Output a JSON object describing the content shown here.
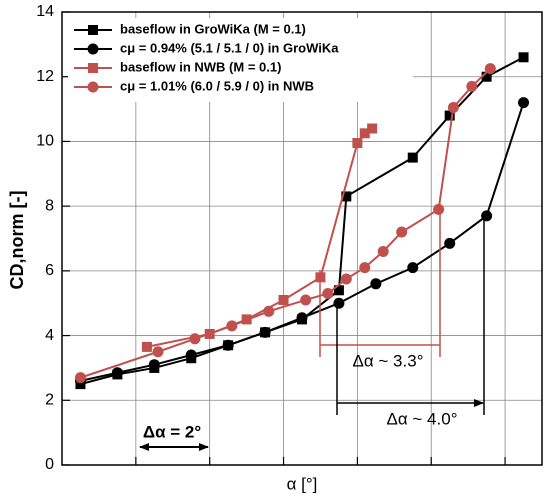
{
  "chart_data": {
    "type": "line",
    "x_label": "α [°]",
    "y_label": "CD,norm [-]",
    "xlim": [
      0,
      13
    ],
    "xticks": [
      2,
      4,
      6,
      8,
      10,
      12
    ],
    "ylim": [
      0,
      14
    ],
    "yticks": [
      0,
      2,
      4,
      6,
      8,
      10,
      12,
      14
    ],
    "grid": true,
    "legend": "upper left",
    "series": [
      {
        "name": "baseflow in GroWiKa (M = 0.1)",
        "color": "#000000",
        "marker": "square",
        "x": [
          0.5,
          1.5,
          2.5,
          3.5,
          4.5,
          5.5,
          6.5,
          7.5,
          7.7,
          9.5,
          10.5,
          11.5,
          12.5
        ],
        "values": [
          2.5,
          2.8,
          3.0,
          3.3,
          3.7,
          4.1,
          4.5,
          5.4,
          8.3,
          9.5,
          10.8,
          12.0,
          12.6
        ]
      },
      {
        "name": "cμ = 0.94% (5.1 / 5.1 / 0) in GroWiKa",
        "color": "#000000",
        "marker": "circle",
        "x": [
          0.5,
          1.5,
          2.5,
          3.5,
          4.5,
          5.5,
          6.5,
          7.5,
          8.5,
          9.5,
          10.5,
          11.5,
          12.5
        ],
        "values": [
          2.6,
          2.85,
          3.1,
          3.4,
          3.7,
          4.1,
          4.55,
          5.0,
          5.6,
          6.1,
          6.85,
          7.7,
          11.2
        ]
      },
      {
        "name": "baseflow in NWB (M = 0.1)",
        "color": "#c0504d",
        "marker": "square",
        "x": [
          2.3,
          4.0,
          5.0,
          6.0,
          7.0,
          8.0,
          8.2,
          8.4
        ],
        "values": [
          3.65,
          4.05,
          4.5,
          5.1,
          5.8,
          9.95,
          10.25,
          10.4
        ]
      },
      {
        "name": "cμ = 1.01% (6.0 / 5.9 / 0) in NWB",
        "color": "#c0504d",
        "marker": "circle",
        "x": [
          0.5,
          2.6,
          3.6,
          4.6,
          5.6,
          6.6,
          7.2,
          7.7,
          8.2,
          8.7,
          9.2,
          10.2,
          10.6,
          11.1,
          11.6
        ],
        "values": [
          2.7,
          3.5,
          3.9,
          4.3,
          4.75,
          5.1,
          5.3,
          5.75,
          6.1,
          6.6,
          7.2,
          7.9,
          11.05,
          11.7,
          12.25
        ]
      }
    ],
    "annotations": [
      "Δα = 2°",
      "Δα ~ 3.3°",
      "Δα ~ 4.0°"
    ]
  }
}
